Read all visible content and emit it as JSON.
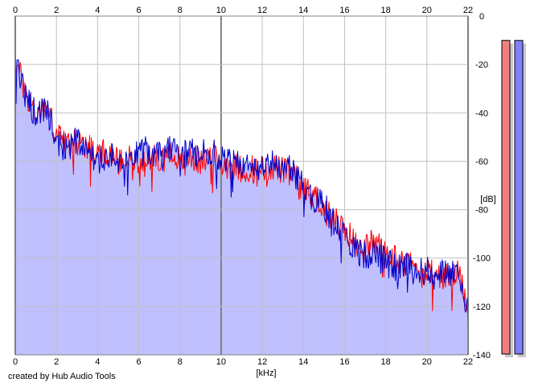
{
  "credit": "created by Hub Audio Tools",
  "colors": {
    "fill": "#c0c0ff",
    "red_series": "#ff0000",
    "blue_series": "#0000cc",
    "grid": "#c0c0c0",
    "major_grid": "#808080",
    "meter_red": "#f08080",
    "meter_blue": "#8080ff"
  },
  "chart_data": {
    "type": "line",
    "title": "",
    "xlabel": "[kHz]",
    "ylabel": "[dB]",
    "xlim": [
      0,
      22
    ],
    "ylim": [
      -140,
      0
    ],
    "grid": true,
    "x_ticks": [
      "0",
      "2",
      "4",
      "6",
      "8",
      "10",
      "12",
      "14",
      "16",
      "18",
      "20",
      "22"
    ],
    "y_ticks": [
      "0",
      "-20",
      "-40",
      "-60",
      "-80",
      "-100",
      "-120",
      "-140"
    ],
    "x": [
      0,
      0.5,
      1,
      1.5,
      2,
      2.5,
      3,
      3.5,
      4,
      4.5,
      5,
      5.5,
      6,
      6.5,
      7,
      7.5,
      8,
      8.5,
      9,
      9.5,
      10,
      10.5,
      11,
      11.5,
      12,
      12.5,
      13,
      13.5,
      14,
      14.5,
      15,
      15.5,
      16,
      16.5,
      17,
      17.5,
      18,
      18.5,
      19,
      19.5,
      20,
      20.5,
      21,
      21.5,
      22
    ],
    "series": [
      {
        "color": "red",
        "values": [
          -18,
          -32,
          -40,
          -38,
          -48,
          -54,
          -52,
          -53,
          -58,
          -56,
          -60,
          -59,
          -60,
          -58,
          -60,
          -57,
          -60,
          -58,
          -60,
          -57,
          -61,
          -62,
          -63,
          -63,
          -64,
          -62,
          -64,
          -66,
          -70,
          -74,
          -79,
          -84,
          -88,
          -93,
          -96,
          -93,
          -98,
          -100,
          -102,
          -104,
          -106,
          -107,
          -108,
          -107,
          -118
        ]
      },
      {
        "color": "blue",
        "values": [
          -20,
          -33,
          -41,
          -39,
          -50,
          -56,
          -51,
          -55,
          -60,
          -58,
          -59,
          -57,
          -55,
          -56,
          -58,
          -55,
          -58,
          -56,
          -57,
          -56,
          -59,
          -61,
          -62,
          -64,
          -63,
          -61,
          -62,
          -64,
          -71,
          -76,
          -78,
          -86,
          -90,
          -97,
          -99,
          -97,
          -102,
          -104,
          -103,
          -106,
          -105,
          -107,
          -106,
          -108,
          -121
        ]
      }
    ],
    "meters": [
      {
        "color": "red",
        "level": 0.96
      },
      {
        "color": "blue",
        "level": 0.96
      }
    ]
  }
}
